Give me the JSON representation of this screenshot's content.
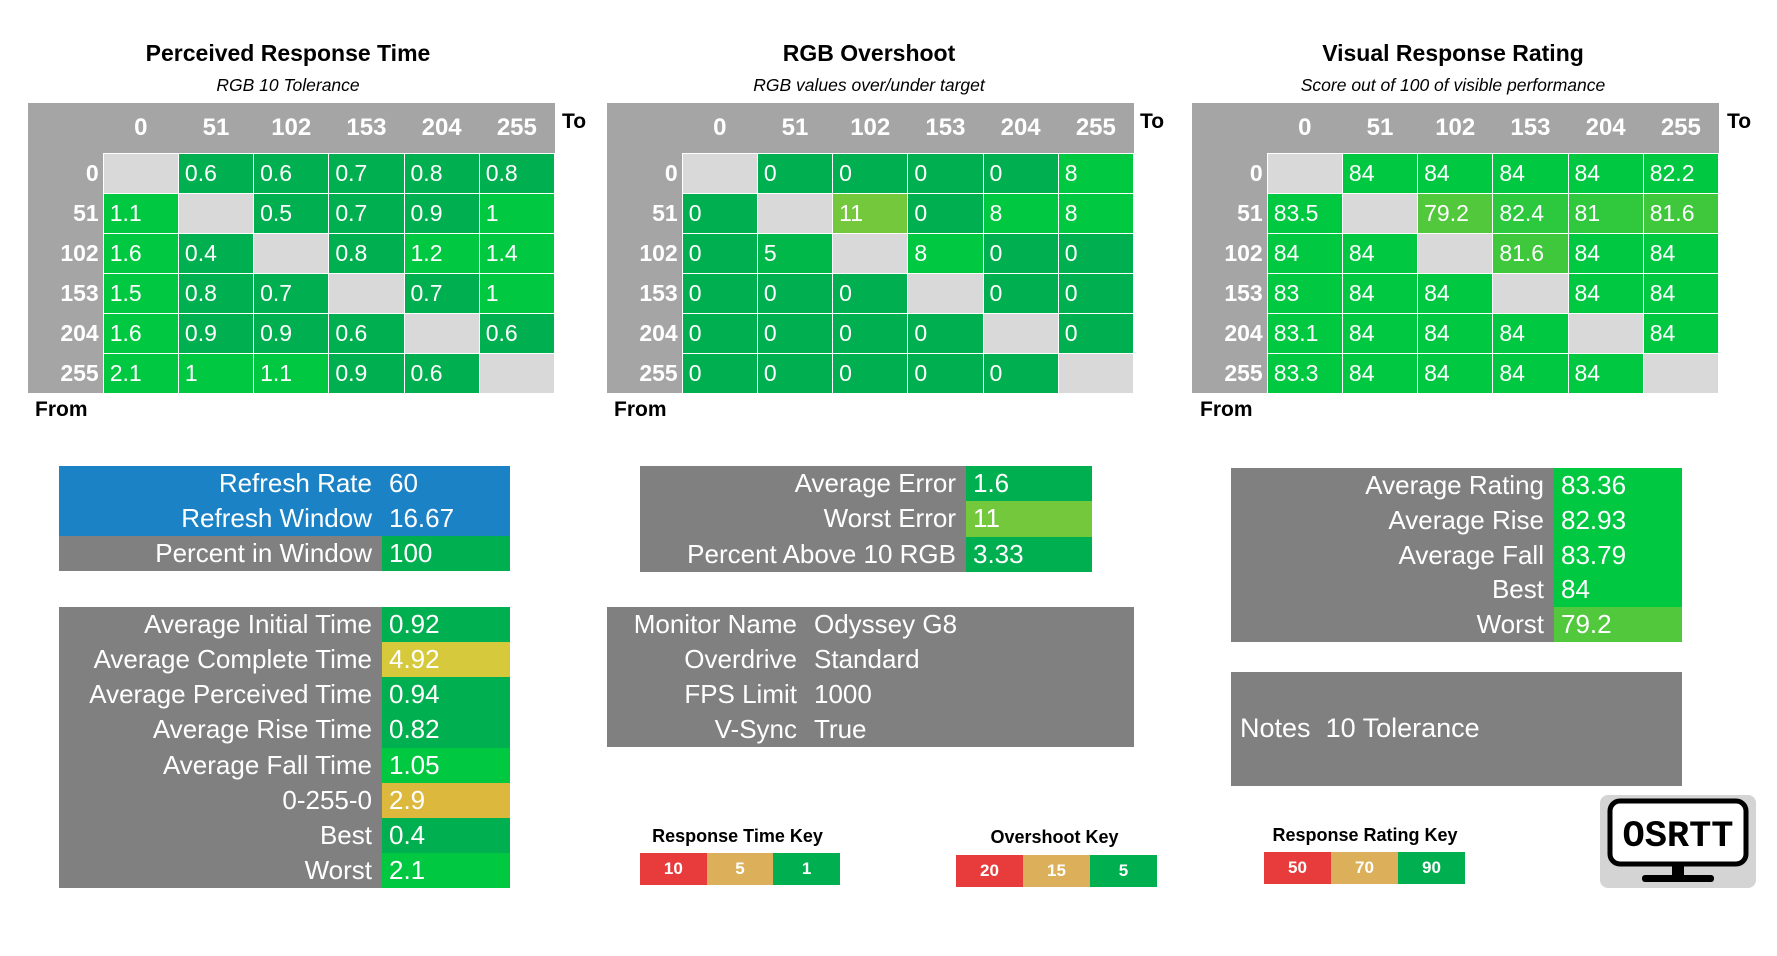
{
  "colors": {
    "header_gray": "#a5a5a5",
    "diag_gray": "#d9d9d9",
    "panel_gray": "#808080",
    "refresh_blue": "#1b82c5",
    "green_dark": "#00b050",
    "green_bright": "#00c840",
    "green_light": "#74c83c",
    "yellow": "#d6c93c",
    "orange": "#dcb83c",
    "red": "#e83b3b",
    "tan": "#dcaf5a"
  },
  "axes": {
    "to": "To",
    "from": "From"
  },
  "chart_data": [
    {
      "type": "heatmap",
      "title": "Perceived Response Time",
      "subtitle": "RGB 10 Tolerance",
      "xlabel": "To",
      "ylabel": "From",
      "categories": [
        "0",
        "51",
        "102",
        "153",
        "204",
        "255"
      ],
      "values": [
        [
          null,
          "0.6",
          "0.6",
          "0.7",
          "0.8",
          "0.8"
        ],
        [
          "1.1",
          null,
          "0.5",
          "0.7",
          "0.9",
          "1"
        ],
        [
          "1.6",
          "0.4",
          null,
          "0.8",
          "1.2",
          "1.4"
        ],
        [
          "1.5",
          "0.8",
          "0.7",
          null,
          "0.7",
          "1"
        ],
        [
          "1.6",
          "0.9",
          "0.9",
          "0.6",
          null,
          "0.6"
        ],
        [
          "2.1",
          "1",
          "1.1",
          "0.9",
          "0.6",
          null
        ]
      ],
      "cell_colors": [
        [
          null,
          "#00b050",
          "#00b050",
          "#00b050",
          "#00b050",
          "#00b050"
        ],
        [
          "#00c840",
          null,
          "#00b050",
          "#00b050",
          "#00b050",
          "#00c840"
        ],
        [
          "#00c840",
          "#00b050",
          null,
          "#00b050",
          "#00c840",
          "#00c840"
        ],
        [
          "#00c840",
          "#00b050",
          "#00b050",
          null,
          "#00b050",
          "#00c840"
        ],
        [
          "#00c840",
          "#00b050",
          "#00b050",
          "#00b050",
          null,
          "#00b050"
        ],
        [
          "#00c840",
          "#00c840",
          "#00c840",
          "#00b050",
          "#00b050",
          null
        ]
      ]
    },
    {
      "type": "heatmap",
      "title": "RGB Overshoot",
      "subtitle": "RGB values over/under target",
      "xlabel": "To",
      "ylabel": "From",
      "categories": [
        "0",
        "51",
        "102",
        "153",
        "204",
        "255"
      ],
      "values": [
        [
          null,
          "0",
          "0",
          "0",
          "0",
          "8"
        ],
        [
          "0",
          null,
          "11",
          "0",
          "8",
          "8"
        ],
        [
          "0",
          "5",
          null,
          "8",
          "0",
          "0"
        ],
        [
          "0",
          "0",
          "0",
          null,
          "0",
          "0"
        ],
        [
          "0",
          "0",
          "0",
          "0",
          null,
          "0"
        ],
        [
          "0",
          "0",
          "0",
          "0",
          "0",
          null
        ]
      ],
      "cell_colors": [
        [
          null,
          "#00b050",
          "#00b050",
          "#00b050",
          "#00b050",
          "#00c840"
        ],
        [
          "#00b050",
          null,
          "#74c83c",
          "#00b050",
          "#00c840",
          "#00c840"
        ],
        [
          "#00b050",
          "#00b84a",
          null,
          "#00c840",
          "#00b050",
          "#00b050"
        ],
        [
          "#00b050",
          "#00b050",
          "#00b050",
          null,
          "#00b050",
          "#00b050"
        ],
        [
          "#00b050",
          "#00b050",
          "#00b050",
          "#00b050",
          null,
          "#00b050"
        ],
        [
          "#00b050",
          "#00b050",
          "#00b050",
          "#00b050",
          "#00b050",
          null
        ]
      ]
    },
    {
      "type": "heatmap",
      "title": "Visual Response Rating",
      "subtitle": "Score out of 100 of visible performance",
      "xlabel": "To",
      "ylabel": "From",
      "categories": [
        "0",
        "51",
        "102",
        "153",
        "204",
        "255"
      ],
      "values": [
        [
          null,
          "84",
          "84",
          "84",
          "84",
          "82.2"
        ],
        [
          "83.5",
          null,
          "79.2",
          "82.4",
          "81",
          "81.6"
        ],
        [
          "84",
          "84",
          null,
          "81.6",
          "84",
          "84"
        ],
        [
          "83",
          "84",
          "84",
          null,
          "84",
          "84"
        ],
        [
          "83.1",
          "84",
          "84",
          "84",
          null,
          "84"
        ],
        [
          "83.3",
          "84",
          "84",
          "84",
          "84",
          null
        ]
      ],
      "cell_colors": [
        [
          null,
          "#00c840",
          "#00c840",
          "#00c840",
          "#00c840",
          "#00c840"
        ],
        [
          "#00c840",
          null,
          "#52c83c",
          "#2cc83e",
          "#30c83c",
          "#40c83c"
        ],
        [
          "#00c840",
          "#00c840",
          null,
          "#40c83c",
          "#00c840",
          "#00c840"
        ],
        [
          "#00c840",
          "#00c840",
          "#00c840",
          null,
          "#00c840",
          "#00c840"
        ],
        [
          "#00c840",
          "#00c840",
          "#00c840",
          "#00c840",
          null,
          "#00c840"
        ],
        [
          "#00c840",
          "#00c840",
          "#00c840",
          "#00c840",
          "#00c840",
          null
        ]
      ]
    }
  ],
  "refresh_panel": {
    "rows": [
      {
        "label": "Refresh Rate",
        "value": "60",
        "label_bg": "#1b82c5",
        "value_bg": "#1b82c5"
      },
      {
        "label": "Refresh Window",
        "value": "16.67",
        "label_bg": "#1b82c5",
        "value_bg": "#1b82c5"
      },
      {
        "label": "Percent in Window",
        "value": "100",
        "label_bg": "#808080",
        "value_bg": "#00b050"
      }
    ]
  },
  "time_panel": {
    "rows": [
      {
        "label": "Average Initial Time",
        "value": "0.92",
        "value_bg": "#00b050"
      },
      {
        "label": "Average Complete Time",
        "value": "4.92",
        "value_bg": "#d6c93c"
      },
      {
        "label": "Average Perceived Time",
        "value": "0.94",
        "value_bg": "#00b050"
      },
      {
        "label": "Average Rise Time",
        "value": "0.82",
        "value_bg": "#00b050"
      },
      {
        "label": "Average Fall Time",
        "value": "1.05",
        "value_bg": "#00c840"
      },
      {
        "label": "0-255-0",
        "value": "2.9",
        "value_bg": "#dcb83c"
      },
      {
        "label": "Best",
        "value": "0.4",
        "value_bg": "#00b050"
      },
      {
        "label": "Worst",
        "value": "2.1",
        "value_bg": "#00c840"
      }
    ]
  },
  "error_panel": {
    "rows": [
      {
        "label": "Average Error",
        "value": "1.6",
        "value_bg": "#00b050"
      },
      {
        "label": "Worst Error",
        "value": "11",
        "value_bg": "#74c83c"
      },
      {
        "label": "Percent Above 10 RGB",
        "value": "3.33",
        "value_bg": "#00b050"
      }
    ]
  },
  "monitor_panel": {
    "rows": [
      {
        "label": "Monitor Name",
        "value": "Odyssey G8"
      },
      {
        "label": "Overdrive",
        "value": "Standard"
      },
      {
        "label": "FPS Limit",
        "value": "1000"
      },
      {
        "label": "V-Sync",
        "value": "True"
      }
    ]
  },
  "rating_panel": {
    "rows": [
      {
        "label": "Average Rating",
        "value": "83.36",
        "value_bg": "#00c840"
      },
      {
        "label": "Average Rise",
        "value": "82.93",
        "value_bg": "#00c840"
      },
      {
        "label": "Average Fall",
        "value": "83.79",
        "value_bg": "#00c840"
      },
      {
        "label": "Best",
        "value": "84",
        "value_bg": "#00c840"
      },
      {
        "label": "Worst",
        "value": "79.2",
        "value_bg": "#52c83c"
      }
    ]
  },
  "notes_panel": {
    "label": "Notes",
    "value": "10 Tolerance"
  },
  "keys": [
    {
      "title": "Response Time Key",
      "items": [
        {
          "label": "10",
          "color": "#e83b3b"
        },
        {
          "label": "5",
          "color": "#dcaf5a"
        },
        {
          "label": "1",
          "color": "#00b050"
        }
      ]
    },
    {
      "title": "Overshoot Key",
      "items": [
        {
          "label": "20",
          "color": "#e83b3b"
        },
        {
          "label": "15",
          "color": "#dcaf5a"
        },
        {
          "label": "5",
          "color": "#00b050"
        }
      ]
    },
    {
      "title": "Response Rating Key",
      "items": [
        {
          "label": "50",
          "color": "#e83b3b"
        },
        {
          "label": "70",
          "color": "#dcaf5a"
        },
        {
          "label": "90",
          "color": "#00b050"
        }
      ]
    }
  ],
  "logo": {
    "text": "OSRTT",
    "icon": "monitor-icon"
  }
}
